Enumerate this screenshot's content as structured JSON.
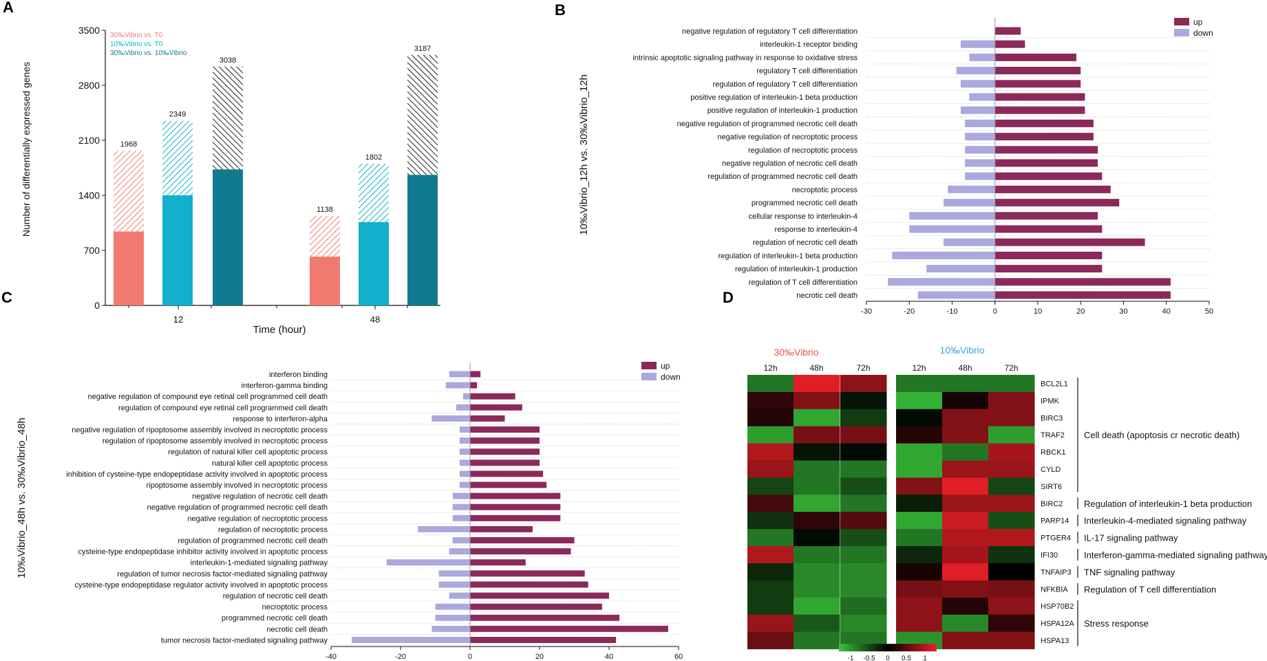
{
  "panels": {
    "a": "A",
    "b": "B",
    "c": "C",
    "d": "D"
  },
  "colors": {
    "salmon": "#f07a70",
    "cyan": "#12b0cc",
    "teal": "#127a8e",
    "up": "#8b2a5a",
    "down": "#aaa8dc"
  },
  "chart_data": [
    {
      "id": "A",
      "type": "bar",
      "ylabel": "Number of differentially expressed genes",
      "xlabel": "Time (hour)",
      "ylim": [
        0,
        3500
      ],
      "yticks": [
        0,
        700,
        1400,
        2100,
        2800,
        3500
      ],
      "xtick_labels": [
        "12",
        "48"
      ],
      "legend": [
        "30‰Vibrio vs. T0",
        "10‰Vibrio vs. T0",
        "30‰Vibrio vs. 10‰Vibrio"
      ],
      "series": [
        {
          "name": "30‰Vibrio vs. T0",
          "time": "12",
          "total": 1968,
          "solid": 940,
          "total_label": "1968"
        },
        {
          "name": "10‰Vibrio vs. T0",
          "time": "12",
          "total": 2349,
          "solid": 1400,
          "total_label": "2349"
        },
        {
          "name": "30‰Vibrio vs. 10‰Vibrio",
          "time": "12",
          "total": 3038,
          "solid": 1730,
          "total_label": "3038"
        },
        {
          "name": "30‰Vibrio vs. T0",
          "time": "48",
          "total": 1138,
          "solid": 620,
          "total_label": "1138"
        },
        {
          "name": "10‰Vibrio vs. T0",
          "time": "48",
          "total": 1802,
          "solid": 1060,
          "total_label": "1802"
        },
        {
          "name": "30‰Vibrio vs. 10‰Vibrio",
          "time": "48",
          "total": 3187,
          "solid": 1660,
          "total_label": "3187"
        }
      ]
    },
    {
      "id": "B",
      "type": "bar",
      "orientation": "horizontal",
      "ylabel": "10‰Vibrio_12h vs. 30‰Vibrio_12h",
      "xlim": [
        -30,
        50
      ],
      "xticks": [
        -30,
        -20,
        -10,
        0,
        10,
        20,
        30,
        40,
        50
      ],
      "legend": [
        "up",
        "down"
      ],
      "categories": [
        "negative regulation of regulatory T cell differentiation",
        "interleukin-1 receptor binding",
        "intrinsic apoptotic signaling pathway in response to oxidative stress",
        "regulatory T cell differentiation",
        "regulation of regulatory T cell differentiation",
        "positive regulation of interleukin-1 beta production",
        "positive regulation of interleukin-1 production",
        "negative regulation of programmed necrotic cell death",
        "negative regulation of necroptotic process",
        "regulation of necroptotic process",
        "negative regulation of necrotic cell death",
        "regulation of programmed necrotic cell death",
        "necroptotic process",
        "programmed necrotic cell death",
        "cellular response to interleukin-4",
        "response to interleukin-4",
        "regulation of necrotic cell death",
        "regulation of interleukin-1 beta production",
        "regulation of interleukin-1 production",
        "regulation of T cell differentiation",
        "necrotic cell death"
      ],
      "series": [
        {
          "name": "up",
          "values": [
            6,
            7,
            19,
            20,
            20,
            21,
            21,
            23,
            23,
            24,
            24,
            25,
            27,
            29,
            24,
            25,
            35,
            25,
            25,
            41,
            41
          ]
        },
        {
          "name": "down",
          "values": [
            0,
            -8,
            -6,
            -9,
            -8,
            -6,
            -8,
            -7,
            -7,
            -7,
            -7,
            -7,
            -11,
            -12,
            -20,
            -20,
            -12,
            -24,
            -16,
            -25,
            -18
          ]
        }
      ]
    },
    {
      "id": "C",
      "type": "bar",
      "orientation": "horizontal",
      "ylabel": "10‰Vibrio_48h vs. 30‰Vibrio_48h",
      "xlim": [
        -40,
        60
      ],
      "xticks": [
        -40,
        -20,
        0,
        20,
        40,
        60
      ],
      "legend": [
        "up",
        "down"
      ],
      "categories": [
        "interferon binding",
        "interferon-gamma binding",
        "negative regulation of compound eye retinal cell programmed cell death",
        "regulation of compound eye retinal cell programmed cell death",
        "response to interferon-alpha",
        "negative regulation of ripoptosome assembly involved in necroptotic process",
        "regulation of ripoptosome assembly involved in necroptotic process",
        "regulation of natural killer cell apoptotic process",
        "natural killer cell apoptotic process",
        "inhibition of cysteine-type endopeptidase activity involved in apoptotic process",
        "ripoptosome assembly involved in necroptotic process",
        "negative regulation of necrotic cell death",
        "negative regulation of programmed necrotic cell death",
        "negative regulation of necroptotic process",
        "regulation of necroptotic process",
        "regulation of programmed necrotic cell death",
        "cysteine-type endopeptidase inhibitor activity involved in apoptotic process",
        "interleukin-1-mediated signaling pathway",
        "regulation of tumor necrosis factor-mediated signaling pathway",
        "cysteine-type endopeptidase regulator activity involved in apoptotic process",
        "regulation of necrotic cell death",
        "necroptotic process",
        "programmed necrotic cell death",
        "necrotic cell death",
        "tumor necrosis factor-mediated signaling pathway"
      ],
      "series": [
        {
          "name": "up",
          "values": [
            3,
            2,
            13,
            15,
            10,
            20,
            20,
            20,
            20,
            21,
            22,
            26,
            26,
            26,
            18,
            30,
            29,
            16,
            33,
            34,
            40,
            38,
            43,
            57,
            42
          ]
        },
        {
          "name": "down",
          "values": [
            -6,
            -7,
            -2,
            -4,
            -11,
            -3,
            -3,
            -3,
            -3,
            -3,
            -3,
            -5,
            -5,
            -5,
            -15,
            -5,
            -6,
            -24,
            -9,
            -9,
            -6,
            -10,
            -10,
            -11,
            -34
          ]
        }
      ]
    },
    {
      "id": "D",
      "type": "heatmap",
      "groups": [
        {
          "name": "30‰Vibrio",
          "color": "#e8524f",
          "columns": [
            "12h",
            "48h",
            "72h"
          ]
        },
        {
          "name": "10‰Vibrio",
          "color": "#3aa3d8",
          "columns": [
            "12h",
            "48h",
            "72h"
          ]
        }
      ],
      "genes": [
        "BCL2L1",
        "IPMK",
        "BIRC3",
        "TRAF2",
        "RBCK1",
        "CYLD",
        "SIRT6",
        "BIRC2",
        "PARP14",
        "PTGER4",
        "IFI30",
        "TNFAIP3",
        "NFKBIA",
        "HSP70B2",
        "HSPA12A",
        "HSPA13"
      ],
      "values": [
        [
          -0.6,
          0.95,
          0.6,
          -0.6,
          -0.6,
          -0.6
        ],
        [
          0.2,
          0.55,
          -0.1,
          -0.9,
          0.1,
          0.55
        ],
        [
          0.15,
          -0.85,
          -0.3,
          -0.05,
          0.55,
          0.55
        ],
        [
          -0.8,
          0.5,
          0.5,
          0.15,
          0.55,
          -0.8
        ],
        [
          0.75,
          -0.1,
          -0.05,
          -0.85,
          -0.6,
          0.7
        ],
        [
          0.65,
          -0.6,
          -0.6,
          -0.85,
          0.65,
          0.65
        ],
        [
          -0.35,
          -0.6,
          -0.4,
          0.55,
          0.95,
          -0.35
        ],
        [
          0.3,
          -0.85,
          -0.6,
          -0.15,
          0.65,
          0.65
        ],
        [
          -0.25,
          0.2,
          0.35,
          -0.85,
          0.85,
          -0.4
        ],
        [
          -0.6,
          -0.05,
          -0.4,
          -0.6,
          0.75,
          0.75
        ],
        [
          0.75,
          -0.6,
          -0.6,
          -0.2,
          0.7,
          -0.25
        ],
        [
          -0.2,
          -0.7,
          -0.7,
          0.1,
          0.95,
          0.0
        ],
        [
          -0.3,
          -0.7,
          -0.7,
          0.5,
          0.55,
          0.5
        ],
        [
          -0.3,
          -0.85,
          -0.55,
          0.6,
          0.15,
          0.6
        ],
        [
          0.65,
          -0.45,
          -0.7,
          0.6,
          -0.7,
          0.2
        ],
        [
          0.45,
          -0.6,
          -0.6,
          -0.75,
          0.55,
          0.55
        ]
      ],
      "annotations": [
        {
          "label": "Cell death (apoptosis cr necrotic death)",
          "from": 0,
          "to": 6
        },
        {
          "label": "Regulation of interleukin-1 beta production",
          "from": 7,
          "to": 7
        },
        {
          "label": "Interleukin-4-mediated signaling pathway",
          "from": 8,
          "to": 8
        },
        {
          "label": "IL-17 signaling pathway",
          "from": 9,
          "to": 9
        },
        {
          "label": "Interferon-gamma-mediated signaling pathway",
          "from": 10,
          "to": 10
        },
        {
          "label": "TNF signaling pathway",
          "from": 11,
          "to": 11
        },
        {
          "label": "Regulation of T cell differentiation",
          "from": 12,
          "to": 12
        },
        {
          "label": "Stress response",
          "from": 13,
          "to": 15
        }
      ],
      "scale_ticks": [
        "-1",
        "-0.5",
        "0",
        "0.5",
        "1"
      ]
    }
  ]
}
